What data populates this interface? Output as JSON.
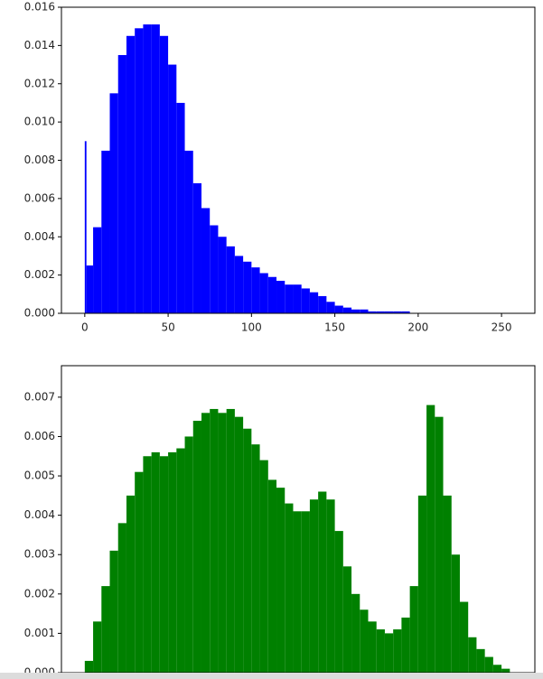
{
  "chart_data": [
    {
      "type": "histogram",
      "color": "#0000ff",
      "bins": [
        0,
        1,
        5,
        10,
        15,
        20,
        25,
        30,
        35,
        40,
        45,
        50,
        55,
        60,
        65,
        70,
        75,
        80,
        85,
        90,
        95,
        100,
        105,
        110,
        115,
        120,
        125,
        130,
        135,
        140,
        145,
        150,
        155,
        160,
        165,
        170,
        175,
        180,
        185,
        190,
        195,
        200,
        205,
        210,
        215,
        220,
        225,
        230,
        235,
        240,
        245,
        250,
        255
      ],
      "values": [
        0.009,
        0.0025,
        0.0045,
        0.0085,
        0.0115,
        0.0135,
        0.0145,
        0.0149,
        0.0151,
        0.0151,
        0.0145,
        0.013,
        0.011,
        0.0085,
        0.0068,
        0.0055,
        0.0046,
        0.004,
        0.0035,
        0.003,
        0.0027,
        0.0024,
        0.0021,
        0.0019,
        0.0017,
        0.0015,
        0.0015,
        0.0013,
        0.0011,
        0.0009,
        0.0006,
        0.0004,
        0.0003,
        0.0002,
        0.0002,
        0.0001,
        0.0001,
        0.0001,
        0.0001,
        0.0001,
        0,
        0,
        0,
        0,
        0,
        0,
        0,
        0,
        0,
        0,
        0,
        0
      ],
      "xlim": [
        -14,
        270
      ],
      "xticks": [
        0,
        50,
        100,
        150,
        200,
        250
      ],
      "ylim": [
        0,
        0.016
      ],
      "yticks": [
        {
          "value": 0,
          "label": "0.000"
        },
        {
          "value": 0.002,
          "label": "0.002"
        },
        {
          "value": 0.004,
          "label": "0.004"
        },
        {
          "value": 0.006,
          "label": "0.006"
        },
        {
          "value": 0.008,
          "label": "0.008"
        },
        {
          "value": 0.01,
          "label": "0.010"
        },
        {
          "value": 0.012,
          "label": "0.012"
        },
        {
          "value": 0.014,
          "label": "0.014"
        },
        {
          "value": 0.016,
          "label": "0.016"
        }
      ]
    },
    {
      "type": "histogram",
      "color": "#008000",
      "bins": [
        0,
        5,
        10,
        15,
        20,
        25,
        30,
        35,
        40,
        45,
        50,
        55,
        60,
        65,
        70,
        75,
        80,
        85,
        90,
        95,
        100,
        105,
        110,
        115,
        120,
        125,
        130,
        135,
        140,
        145,
        150,
        155,
        160,
        165,
        170,
        175,
        180,
        185,
        190,
        195,
        200,
        205,
        210,
        215,
        220,
        225,
        230,
        235,
        240,
        245,
        250,
        255
      ],
      "values": [
        0.0003,
        0.0013,
        0.0022,
        0.0031,
        0.0038,
        0.0045,
        0.0051,
        0.0055,
        0.0056,
        0.0055,
        0.0056,
        0.0057,
        0.006,
        0.0064,
        0.0066,
        0.0067,
        0.0066,
        0.0067,
        0.0065,
        0.0062,
        0.0058,
        0.0054,
        0.0049,
        0.0047,
        0.0043,
        0.0041,
        0.0041,
        0.0044,
        0.0046,
        0.0044,
        0.0036,
        0.0027,
        0.002,
        0.0016,
        0.0013,
        0.0011,
        0.001,
        0.0011,
        0.0014,
        0.0022,
        0.0045,
        0.0068,
        0.0065,
        0.0045,
        0.003,
        0.0018,
        0.0009,
        0.0006,
        0.0004,
        0.0002,
        0.0001
      ],
      "xlim": [
        -14,
        270
      ],
      "ylim": [
        0,
        0.0078
      ],
      "yticks": [
        {
          "value": 0,
          "label": "0.000"
        },
        {
          "value": 0.001,
          "label": "0.001"
        },
        {
          "value": 0.002,
          "label": "0.002"
        },
        {
          "value": 0.003,
          "label": "0.003"
        },
        {
          "value": 0.004,
          "label": "0.004"
        },
        {
          "value": 0.005,
          "label": "0.005"
        },
        {
          "value": 0.006,
          "label": "0.006"
        },
        {
          "value": 0.007,
          "label": "0.007"
        }
      ]
    }
  ]
}
